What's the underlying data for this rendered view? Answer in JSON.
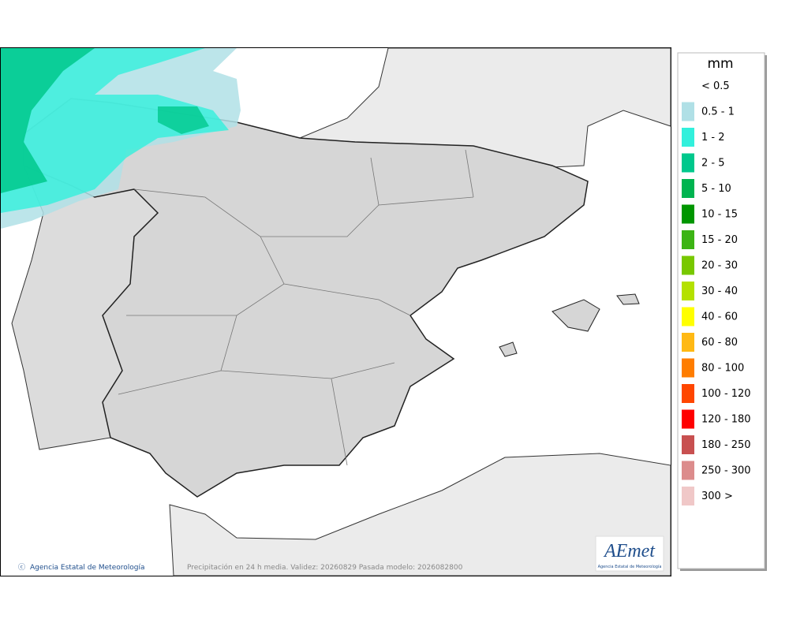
{
  "legend": {
    "title": "mm",
    "items": [
      {
        "label": "< 0.5",
        "color": null
      },
      {
        "label": "0.5 - 1",
        "color": "#b0e0e6"
      },
      {
        "label": "1 - 2",
        "color": "#32f0dc"
      },
      {
        "label": "2 - 5",
        "color": "#00c88c"
      },
      {
        "label": "5 - 10",
        "color": "#00b450"
      },
      {
        "label": "10 - 15",
        "color": "#009600"
      },
      {
        "label": "15 - 20",
        "color": "#3cb414"
      },
      {
        "label": "20 - 30",
        "color": "#78c800"
      },
      {
        "label": "30 - 40",
        "color": "#b4e100"
      },
      {
        "label": "40 - 60",
        "color": "#ffff00"
      },
      {
        "label": "60 - 80",
        "color": "#ffb914"
      },
      {
        "label": "80 - 100",
        "color": "#ff7d00"
      },
      {
        "label": "100 - 120",
        "color": "#ff4600"
      },
      {
        "label": "120 - 180",
        "color": "#ff0000"
      },
      {
        "label": "180 - 250",
        "color": "#c85050"
      },
      {
        "label": "250 - 300",
        "color": "#dc8c8c"
      },
      {
        "label": "300 >",
        "color": "#f0c8c8"
      }
    ]
  },
  "footer": {
    "credit": "Agencia Estatal de Meteorología",
    "caption": "Precipitación en 24 h media. Validez: 20260829 Pasada modelo: 2026082800"
  },
  "logo": {
    "name": "AEmet",
    "subtitle": "Agencia Estatal de Meteorología"
  }
}
